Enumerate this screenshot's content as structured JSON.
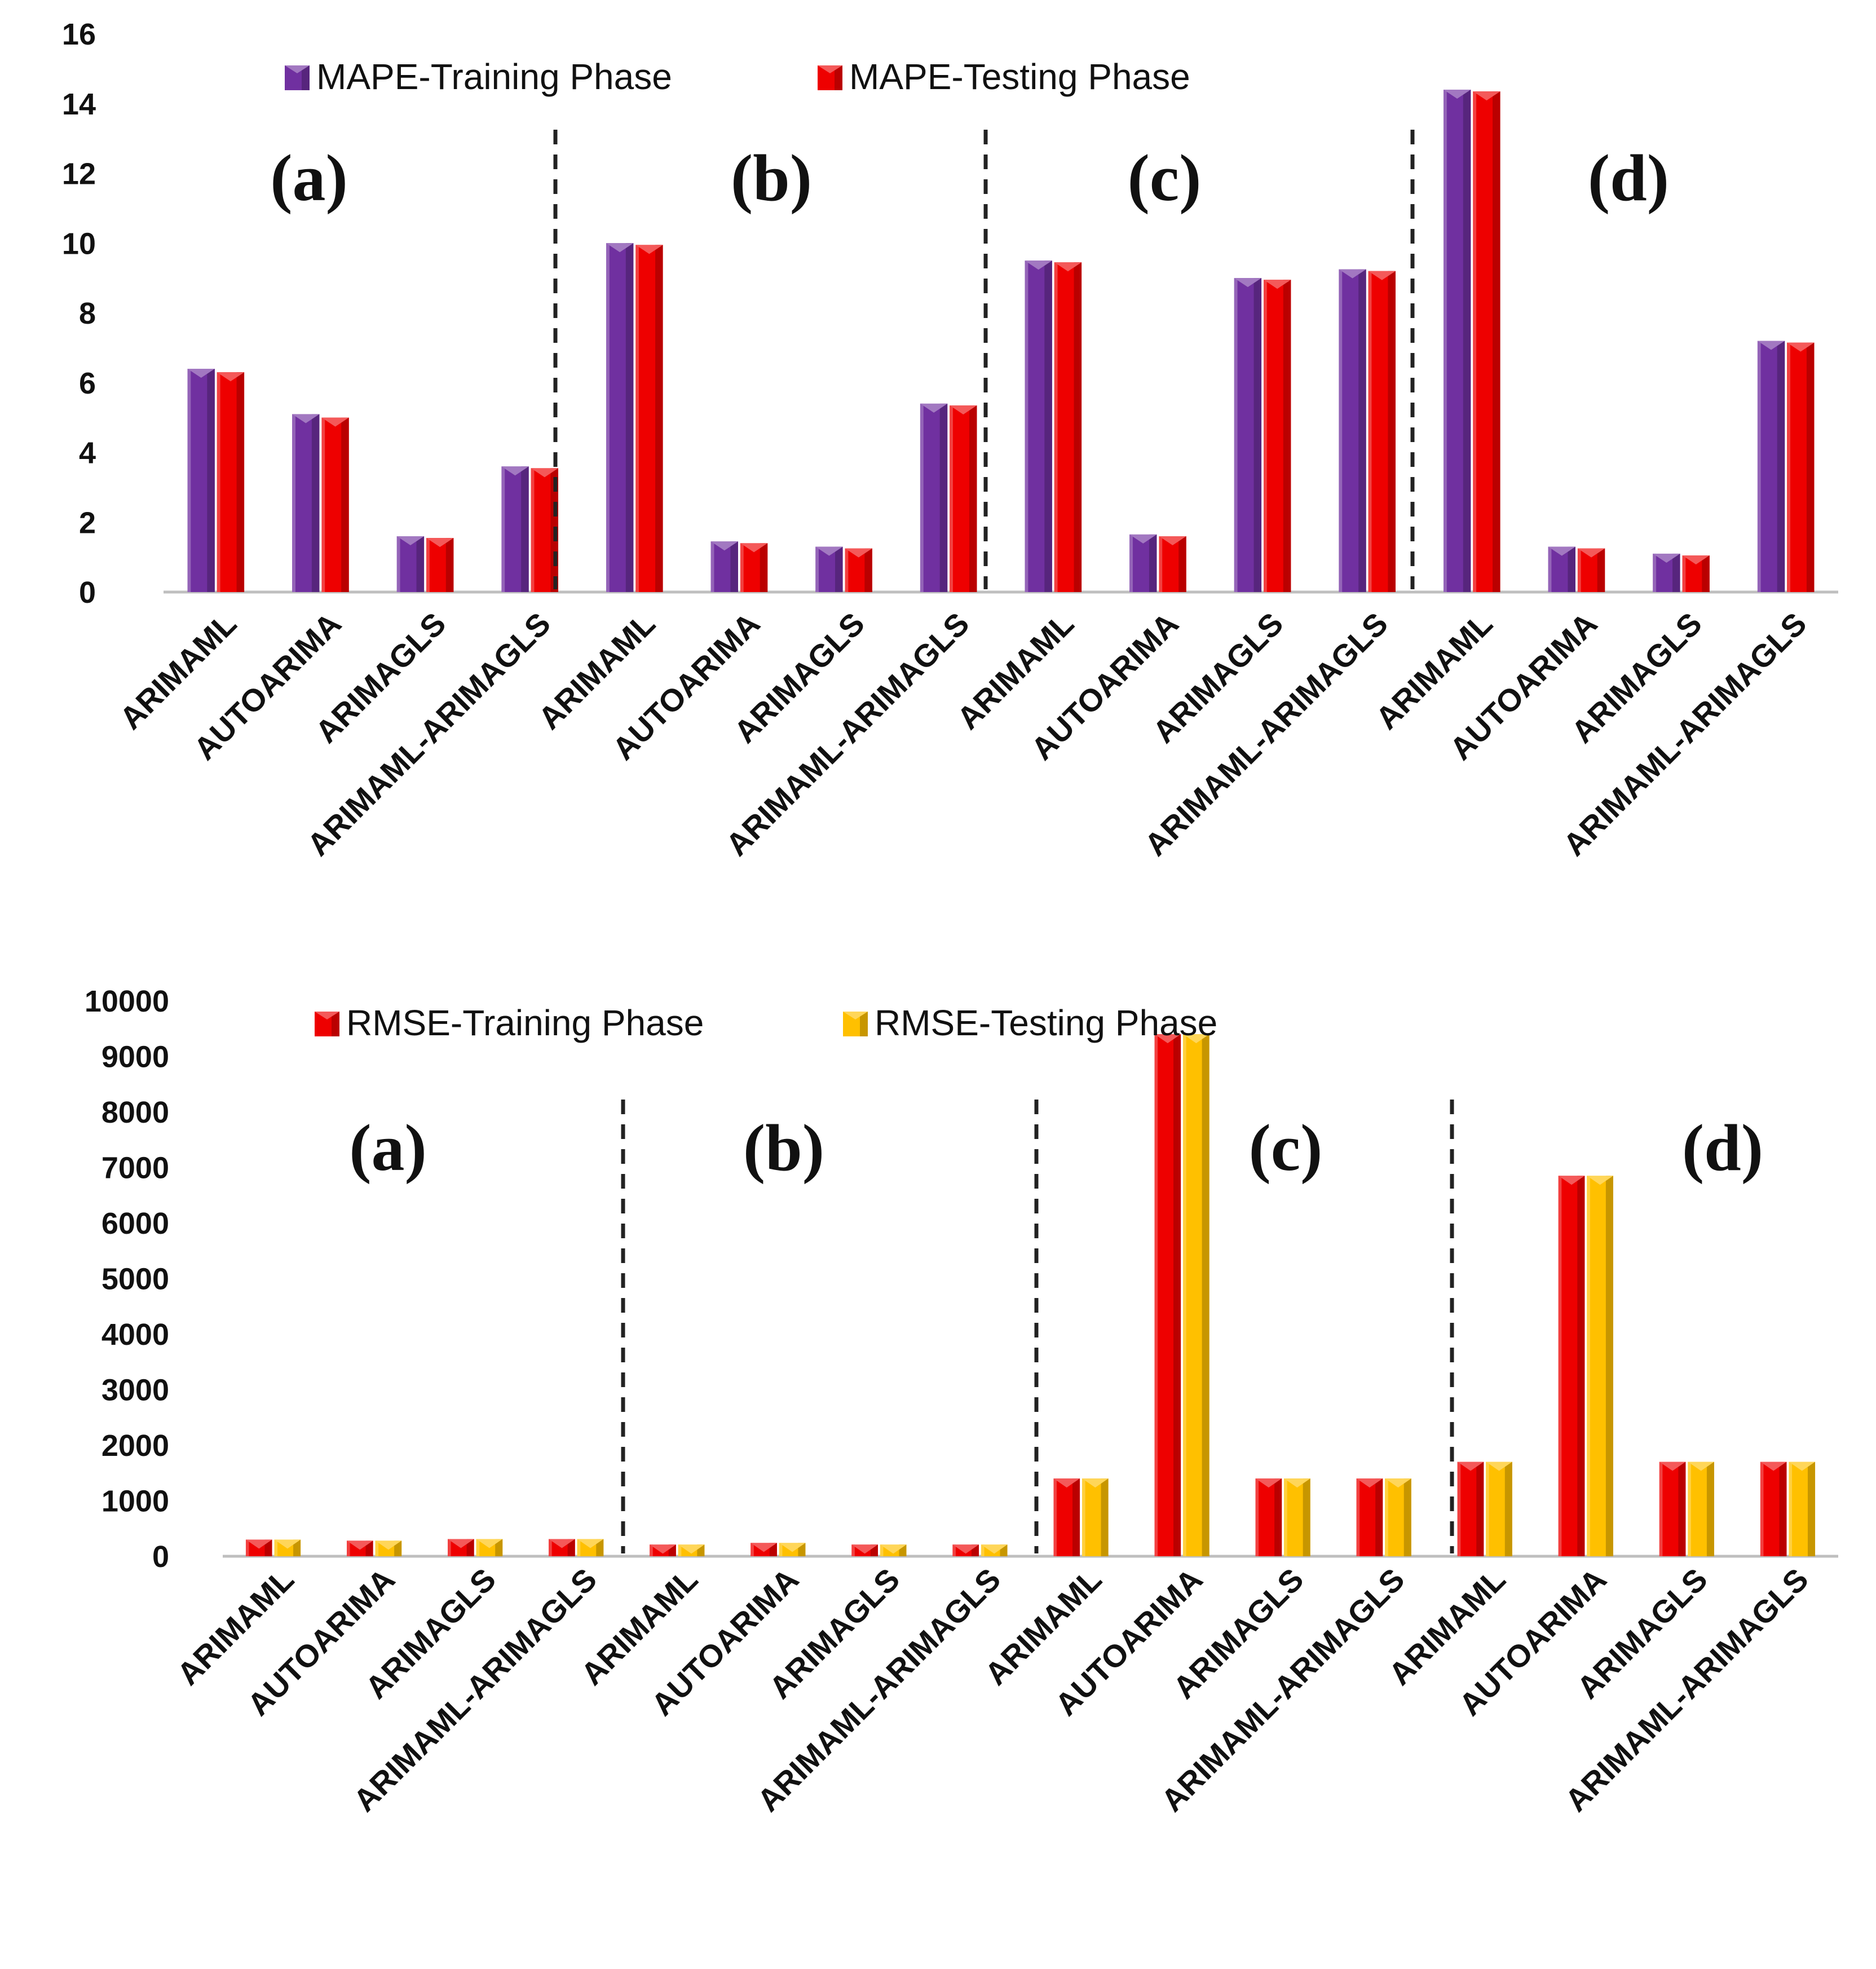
{
  "chart_data": [
    {
      "type": "bar",
      "ylim": [
        0,
        16
      ],
      "yticks": [
        0,
        2,
        4,
        6,
        8,
        10,
        12,
        14,
        16
      ],
      "categories": [
        "ARIMAML",
        "AUTOARIMA",
        "ARIMAGLS",
        "ARIMAML-ARIMAGLS",
        "ARIMAML",
        "AUTOARIMA",
        "ARIMAGLS",
        "ARIMAML-ARIMAGLS",
        "ARIMAML",
        "AUTOARIMA",
        "ARIMAGLS",
        "ARIMAML-ARIMAGLS",
        "ARIMAML",
        "AUTOARIMA",
        "ARIMAGLS",
        "ARIMAML-ARIMAGLS"
      ],
      "groups": [
        "(a)",
        "(b)",
        "(c)",
        "(d)"
      ],
      "legend_position": "top",
      "grid": false,
      "series": [
        {
          "name": "MAPE-Training Phase",
          "color": "#7030a0",
          "values": [
            6.4,
            5.1,
            1.6,
            3.6,
            10.0,
            1.45,
            1.3,
            5.4,
            9.5,
            1.65,
            9.0,
            9.25,
            14.4,
            1.3,
            1.1,
            7.2
          ]
        },
        {
          "name": "MAPE-Testing Phase",
          "color": "#ee0000",
          "values": [
            6.3,
            5.0,
            1.55,
            3.55,
            9.95,
            1.4,
            1.25,
            5.35,
            9.45,
            1.6,
            8.95,
            9.2,
            14.35,
            1.25,
            1.05,
            7.15
          ]
        }
      ]
    },
    {
      "type": "bar",
      "ylim": [
        0,
        10000
      ],
      "yticks": [
        0,
        1000,
        2000,
        3000,
        4000,
        5000,
        6000,
        7000,
        8000,
        9000,
        10000
      ],
      "categories": [
        "ARIMAML",
        "AUTOARIMA",
        "ARIMAGLS",
        "ARIMAML-ARIMAGLS",
        "ARIMAML",
        "AUTOARIMA",
        "ARIMAGLS",
        "ARIMAML-ARIMAGLS",
        "ARIMAML",
        "AUTOARIMA",
        "ARIMAGLS",
        "ARIMAML-ARIMAGLS",
        "ARIMAML",
        "AUTOARIMA",
        "ARIMAGLS",
        "ARIMAML-ARIMAGLS"
      ],
      "groups": [
        "(a)",
        "(b)",
        "(c)",
        "(d)"
      ],
      "legend_position": "top",
      "grid": false,
      "series": [
        {
          "name": "RMSE-Training Phase",
          "color": "#ee0000",
          "values": [
            300,
            280,
            310,
            310,
            210,
            240,
            210,
            210,
            1400,
            9400,
            1400,
            1400,
            1700,
            6850,
            1700,
            1700
          ]
        },
        {
          "name": "RMSE-Testing Phase",
          "color": "#ffc000",
          "values": [
            300,
            280,
            310,
            310,
            210,
            240,
            210,
            210,
            1400,
            9400,
            1400,
            1400,
            1700,
            6850,
            1700,
            1700
          ]
        }
      ]
    }
  ]
}
